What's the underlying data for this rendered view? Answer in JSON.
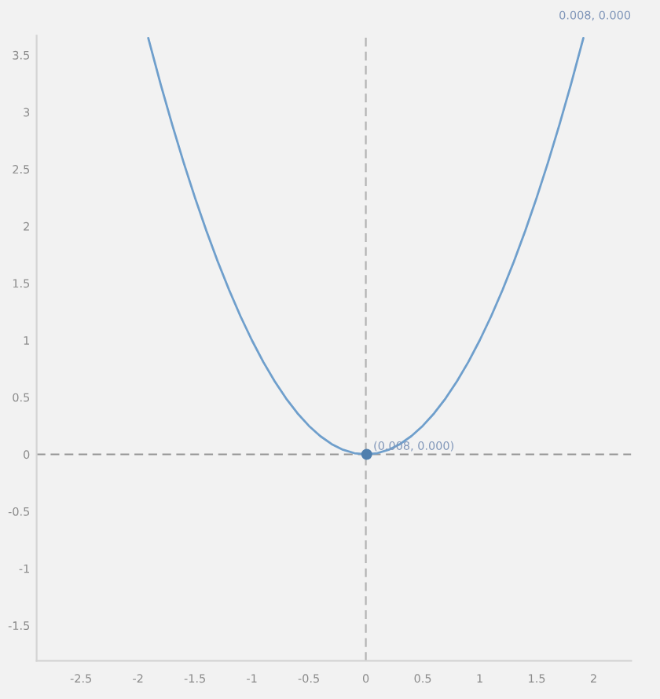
{
  "chart_data": {
    "type": "line",
    "series": [
      {
        "color": "#6f9fcc",
        "marker": "none",
        "line_style": "solid",
        "x": [
          -1.91,
          -1.8,
          -1.7,
          -1.6,
          -1.5,
          -1.4,
          -1.3,
          -1.2,
          -1.1,
          -1.0,
          -0.9,
          -0.8,
          -0.7,
          -0.6,
          -0.5,
          -0.4,
          -0.3,
          -0.2,
          -0.1,
          0,
          0.1,
          0.2,
          0.3,
          0.4,
          0.5,
          0.6,
          0.7,
          0.8,
          0.9,
          1.0,
          1.1,
          1.2,
          1.3,
          1.4,
          1.5,
          1.6,
          1.7,
          1.8,
          1.91
        ],
        "values": [
          3.65,
          3.24,
          2.89,
          2.56,
          2.25,
          1.96,
          1.69,
          1.44,
          1.21,
          1.0,
          0.81,
          0.64,
          0.49,
          0.36,
          0.25,
          0.16,
          0.09,
          0.04,
          0.01,
          0,
          0.01,
          0.04,
          0.09,
          0.16,
          0.25,
          0.36,
          0.49,
          0.64,
          0.81,
          1.0,
          1.21,
          1.44,
          1.69,
          1.96,
          2.25,
          2.56,
          2.89,
          3.24,
          3.65
        ]
      },
      {
        "type": "scatter",
        "color": "#4f7fae",
        "marker": "circle",
        "x": [
          0.008
        ],
        "values": [
          0
        ]
      }
    ],
    "xlim": [
      -2.89,
      2.33
    ],
    "xticks": [
      -2.5,
      -2,
      -1.5,
      -1,
      -0.5,
      0,
      0.5,
      1,
      1.5,
      2
    ],
    "ylim": [
      -1.81,
      3.67
    ],
    "yticks": [
      -1.5,
      -1,
      -0.5,
      0,
      0.5,
      1,
      1.5,
      2,
      2.5,
      3,
      3.5
    ],
    "ref_lines": [
      {
        "axis": "x",
        "value": 0,
        "color": "#b4b4b4",
        "line_style": "dashed"
      },
      {
        "axis": "y",
        "value": 0,
        "color": "#959595",
        "line_style": "dashed"
      }
    ],
    "annotations": [
      {
        "text": "(0.008, 0.000)",
        "x": 0.008,
        "y": 0
      },
      "0.008, 0.000"
    ],
    "grid": false,
    "legend": false
  }
}
